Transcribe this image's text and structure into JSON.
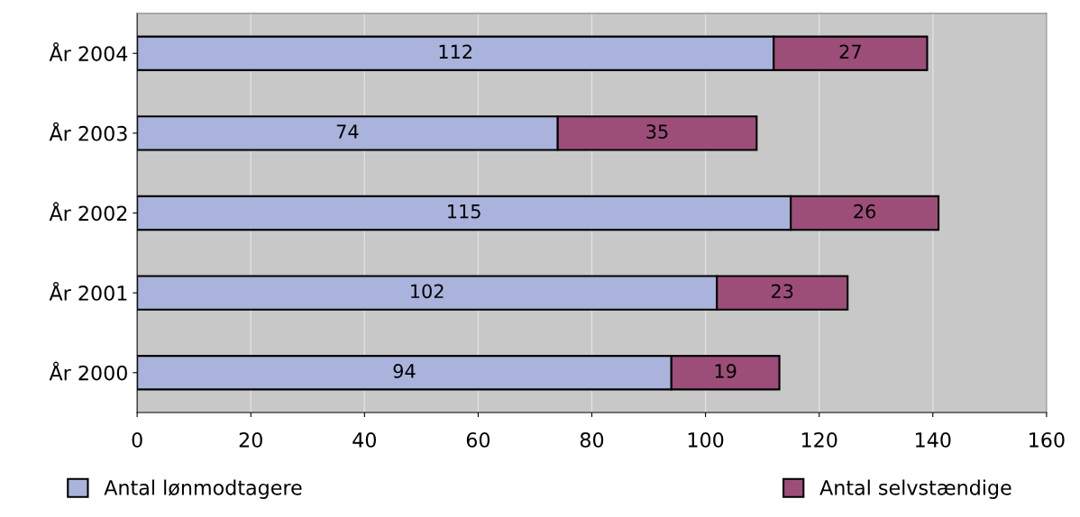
{
  "chart_data": {
    "type": "bar",
    "orientation": "horizontal",
    "stacked": true,
    "categories": [
      "År 2004",
      "År 2003",
      "År 2002",
      "År 2001",
      "År 2000"
    ],
    "series": [
      {
        "name": "Antal lønmodtagere",
        "color": "#a9b3dc",
        "values": [
          112,
          74,
          115,
          102,
          94
        ]
      },
      {
        "name": "Antal selvstændige",
        "color": "#9c4e78",
        "values": [
          27,
          35,
          26,
          23,
          19
        ]
      }
    ],
    "xlim": [
      0,
      160
    ],
    "xticks": [
      0,
      20,
      40,
      60,
      80,
      100,
      120,
      140,
      160
    ],
    "grid": "x",
    "legend": "bottom",
    "data_labels": true
  }
}
